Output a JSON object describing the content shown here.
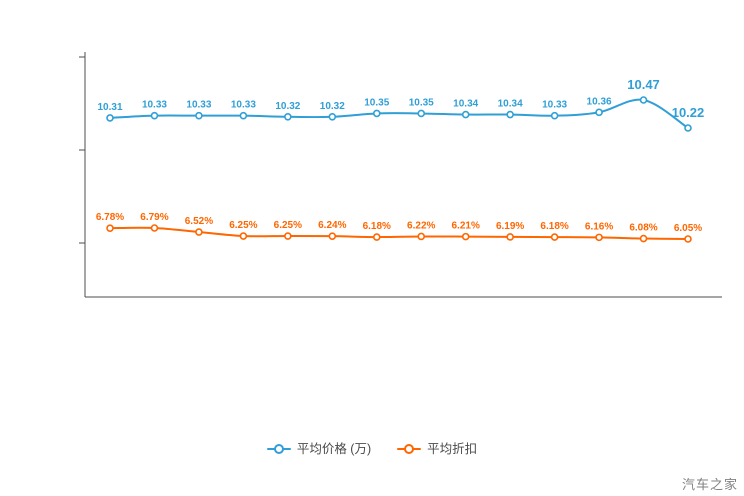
{
  "watermark": {
    "text": "汽车之家"
  },
  "chart_data": {
    "type": "line",
    "title": "",
    "point_count": 14,
    "x_axis": {
      "labels_visible": false
    },
    "y_axis": {
      "labels_visible": false
    },
    "grid": false,
    "legend_position": "bottom",
    "series": [
      {
        "name": "平均价格 (万)",
        "slug": "avg-price",
        "color": "#2f9fd6",
        "suffix": "",
        "values": [
          10.31,
          10.33,
          10.33,
          10.33,
          10.32,
          10.32,
          10.35,
          10.35,
          10.34,
          10.34,
          10.33,
          10.36,
          10.47,
          10.22
        ],
        "big_label_indices": [
          12,
          13
        ]
      },
      {
        "name": "平均折扣",
        "slug": "avg-discount",
        "color": "#ff6600",
        "suffix": "%",
        "values": [
          6.78,
          6.79,
          6.52,
          6.25,
          6.25,
          6.24,
          6.18,
          6.22,
          6.21,
          6.19,
          6.18,
          6.16,
          6.08,
          6.05
        ],
        "big_label_indices": []
      }
    ]
  }
}
